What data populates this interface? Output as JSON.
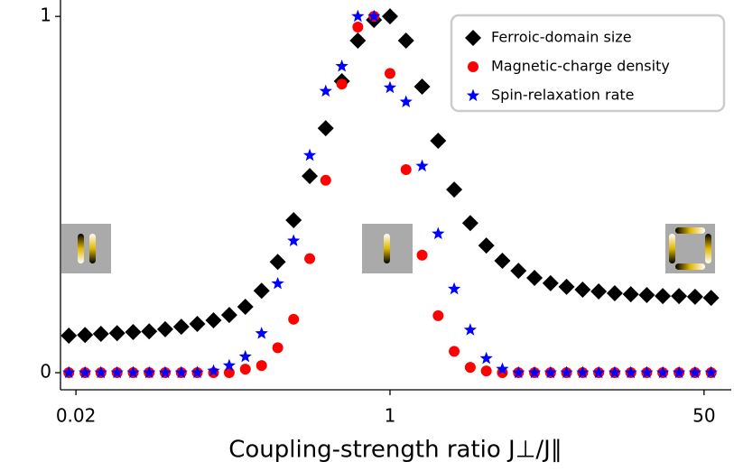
{
  "chart_data": {
    "type": "scatter",
    "x_label": "Coupling-strength ratio J⊥/J∥",
    "x_scale": "log",
    "xlim": [
      0.0165,
      70.2
    ],
    "xticks": [
      0.02,
      1,
      50
    ],
    "ylim": [
      -0.048,
      1.046
    ],
    "yticks": [
      0,
      1
    ],
    "legend": "upper right",
    "x": [
      0.0183,
      0.0224,
      0.0273,
      0.0334,
      0.0408,
      0.0498,
      0.0608,
      0.0743,
      0.0907,
      0.111,
      0.135,
      0.165,
      0.202,
      0.247,
      0.301,
      0.368,
      0.449,
      0.549,
      0.67,
      0.819,
      1,
      1.221,
      1.492,
      1.822,
      2.225,
      2.718,
      3.32,
      4.055,
      4.953,
      6.05,
      7.39,
      9.02,
      11.02,
      13.46,
      16.44,
      20.08,
      24.5,
      29.9,
      36.6,
      44.7,
      54.6
    ],
    "series": [
      {
        "name": "Ferroic-domain size",
        "color": "#000000",
        "marker": "diamond",
        "values": [
          0.104,
          0.106,
          0.109,
          0.111,
          0.114,
          0.116,
          0.122,
          0.129,
          0.137,
          0.147,
          0.162,
          0.185,
          0.23,
          0.311,
          0.428,
          0.552,
          0.686,
          0.818,
          0.932,
          0.99,
          1.0,
          0.932,
          0.803,
          0.651,
          0.514,
          0.42,
          0.357,
          0.314,
          0.286,
          0.266,
          0.251,
          0.241,
          0.233,
          0.228,
          0.223,
          0.22,
          0.218,
          0.215,
          0.215,
          0.213,
          0.21
        ]
      },
      {
        "name": "Magnetic-charge density",
        "color": "#ff0000",
        "marker": "circle",
        "values": [
          0,
          0,
          0,
          0,
          0,
          0,
          0,
          0,
          0,
          0,
          0,
          0.01,
          0.02,
          0.07,
          0.15,
          0.32,
          0.54,
          0.81,
          0.97,
          1.0,
          0.84,
          0.57,
          0.33,
          0.16,
          0.06,
          0.015,
          0.005,
          0,
          0,
          0,
          0,
          0,
          0,
          0,
          0,
          0,
          0,
          0,
          0,
          0,
          0
        ]
      },
      {
        "name": "Spin-relaxation rate",
        "color": "#0000ff",
        "marker": "star",
        "values": [
          0,
          0,
          0,
          0,
          0,
          0,
          0,
          0,
          0,
          0.005,
          0.02,
          0.045,
          0.11,
          0.25,
          0.37,
          0.61,
          0.79,
          0.86,
          1.0,
          1.0,
          0.8,
          0.76,
          0.58,
          0.39,
          0.235,
          0.12,
          0.04,
          0.01,
          0,
          0,
          0,
          0,
          0,
          0,
          0,
          0,
          0,
          0,
          0,
          0,
          0
        ]
      }
    ]
  }
}
